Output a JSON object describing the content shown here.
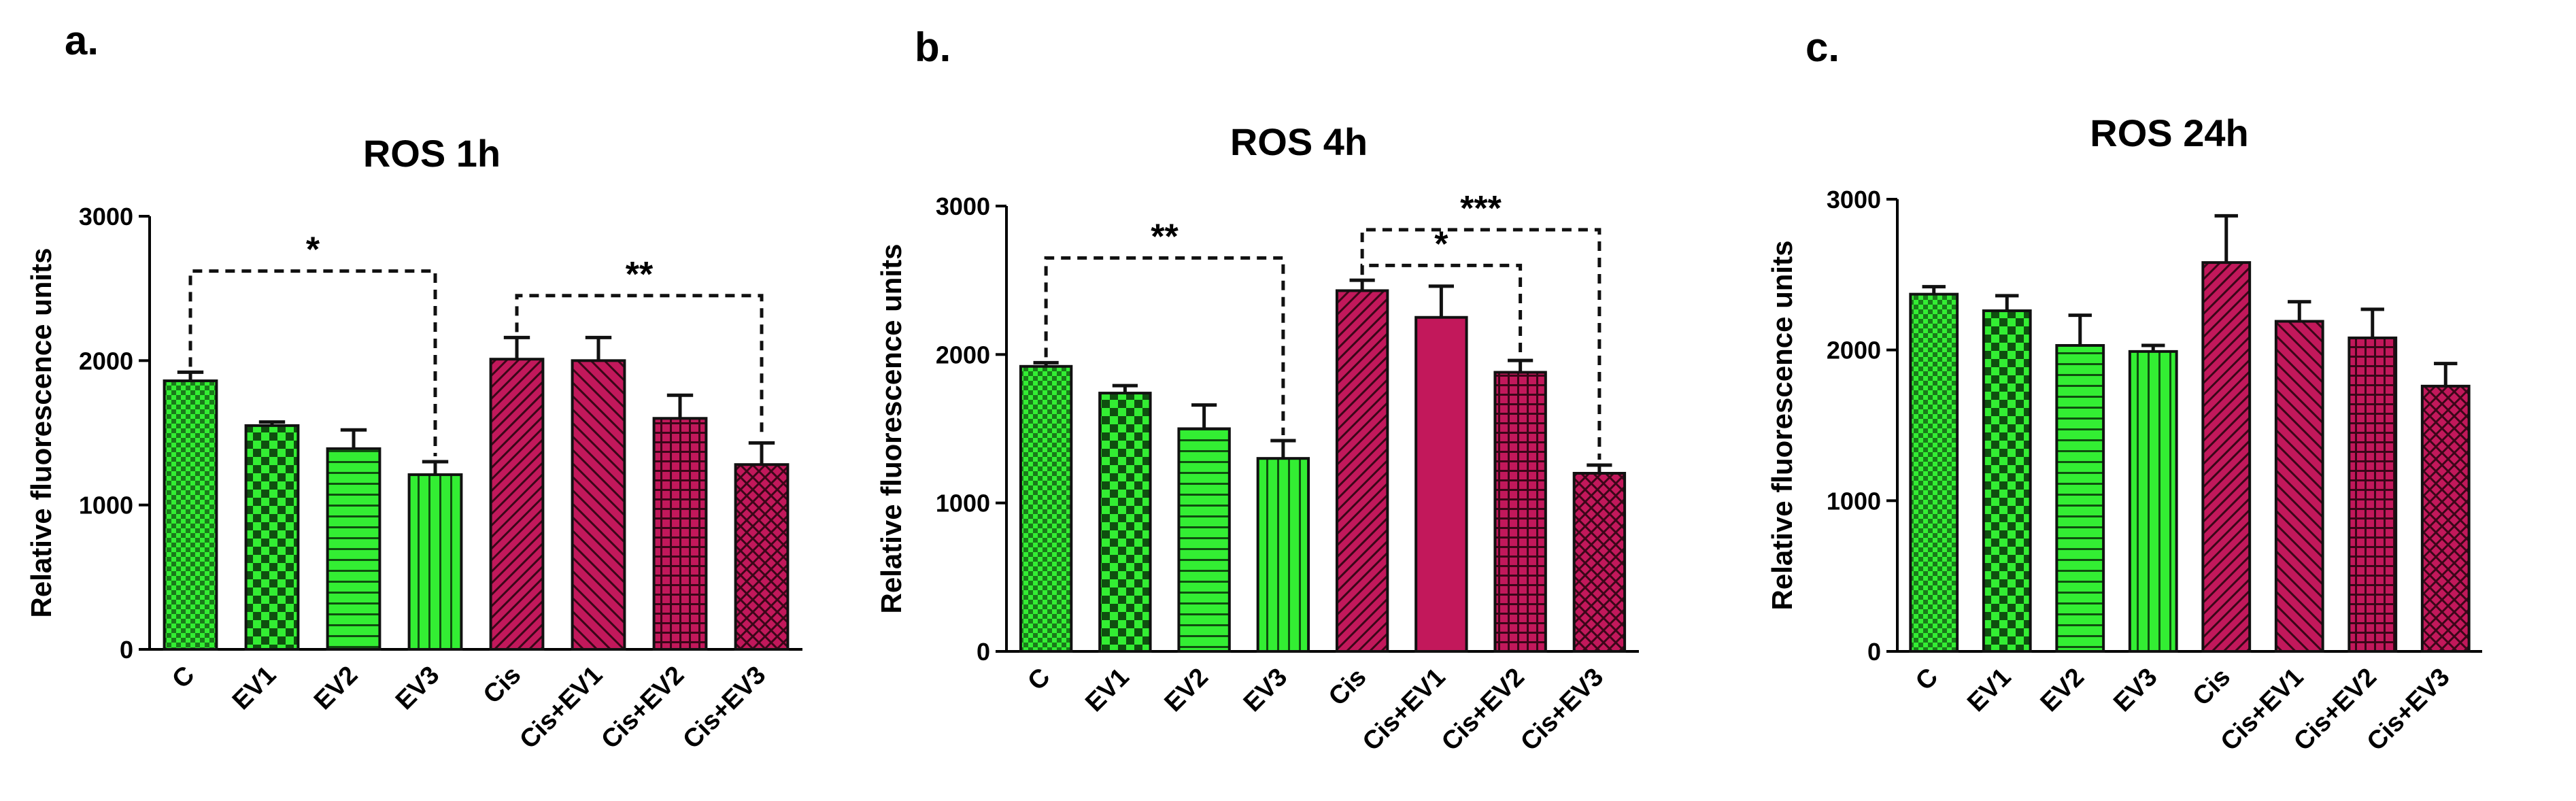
{
  "colors": {
    "green": "#33ee33",
    "red": "#c2185b",
    "black": "#111111"
  },
  "chart_data": [
    {
      "type": "bar",
      "panel_letter": "a.",
      "title": "ROS 1h",
      "xlabel": "",
      "ylabel": "Relative fluorescence units",
      "ylim": [
        0,
        3000
      ],
      "yticks": [
        "0",
        "1000",
        "2000",
        "3000"
      ],
      "ytick_values": [
        0,
        1000,
        2000,
        3000
      ],
      "categories": [
        "C",
        "EV1",
        "EV2",
        "EV3",
        "Cis",
        "Cis+EV1",
        "Cis+EV2",
        "Cis+EV3"
      ],
      "values": [
        1860,
        1550,
        1390,
        1210,
        2010,
        2000,
        1600,
        1280
      ],
      "errors": [
        60,
        25,
        130,
        90,
        150,
        160,
        160,
        150
      ],
      "groups": [
        "green",
        "green",
        "green",
        "green",
        "red",
        "red",
        "red",
        "red"
      ],
      "patterns": [
        "small-check",
        "check",
        "horizontal",
        "vertical",
        "diagonal-dense",
        "diagonal",
        "grid",
        "weave"
      ],
      "significance": [
        {
          "label": "*",
          "from": 0,
          "to": 3,
          "level": 2620
        },
        {
          "label": "**",
          "from": 4,
          "to": 7,
          "level": 2450
        }
      ]
    },
    {
      "type": "bar",
      "panel_letter": "b.",
      "title": "ROS 4h",
      "xlabel": "",
      "ylabel": "Relative fluorescence units",
      "ylim": [
        0,
        3000
      ],
      "yticks": [
        "0",
        "1000",
        "2000",
        "3000"
      ],
      "ytick_values": [
        0,
        1000,
        2000,
        3000
      ],
      "categories": [
        "C",
        "EV1",
        "EV2",
        "EV3",
        "Cis",
        "Cis+EV1",
        "Cis+EV2",
        "Cis+EV3"
      ],
      "values": [
        1920,
        1740,
        1500,
        1300,
        2430,
        2250,
        1880,
        1200
      ],
      "errors": [
        25,
        50,
        160,
        120,
        70,
        210,
        80,
        55
      ],
      "groups": [
        "green",
        "green",
        "green",
        "green",
        "red",
        "red",
        "red",
        "red"
      ],
      "patterns": [
        "small-check",
        "check",
        "horizontal",
        "vertical",
        "diagonal-dense",
        "solid",
        "grid",
        "weave"
      ],
      "significance": [
        {
          "label": "**",
          "from": 0,
          "to": 3,
          "level": 2650
        },
        {
          "label": "*",
          "from": 4,
          "to": 6,
          "level": 2600
        },
        {
          "label": "***",
          "from": 4,
          "to": 7,
          "level": 2840
        }
      ]
    },
    {
      "type": "bar",
      "panel_letter": "c.",
      "title": "ROS 24h",
      "xlabel": "",
      "ylabel": "Relative fluorescence units",
      "ylim": [
        0,
        3000
      ],
      "yticks": [
        "0",
        "1000",
        "2000",
        "3000"
      ],
      "ytick_values": [
        0,
        1000,
        2000,
        3000
      ],
      "categories": [
        "C",
        "EV1",
        "EV2",
        "EV3",
        "Cis",
        "Cis+EV1",
        "Cis+EV2",
        "Cis+EV3"
      ],
      "values": [
        2370,
        2260,
        2030,
        1990,
        2580,
        2190,
        2080,
        1760
      ],
      "errors": [
        50,
        100,
        200,
        40,
        310,
        130,
        190,
        150
      ],
      "groups": [
        "green",
        "green",
        "green",
        "green",
        "red",
        "red",
        "red",
        "red"
      ],
      "patterns": [
        "small-check",
        "check",
        "horizontal",
        "vertical",
        "diagonal-dense",
        "diagonal",
        "grid",
        "weave"
      ],
      "significance": []
    }
  ]
}
